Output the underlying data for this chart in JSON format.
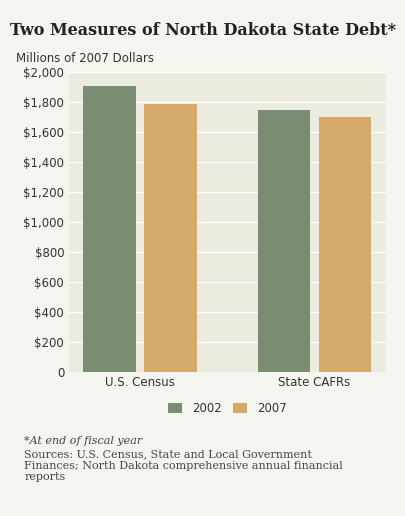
{
  "title": "Two Measures of North Dakota State Debt*",
  "ylabel": "Millions of 2007 Dollars",
  "categories": [
    "U.S. Census",
    "State CAFRs"
  ],
  "series": {
    "2002": [
      1910,
      1750
    ],
    "2007": [
      1790,
      1700
    ]
  },
  "bar_colors": {
    "2002": "#7a8c72",
    "2007": "#d4a96a"
  },
  "ylim": [
    0,
    2000
  ],
  "yticks": [
    0,
    200,
    400,
    600,
    800,
    1000,
    1200,
    1400,
    1600,
    1800,
    2000
  ],
  "legend_labels": [
    "2002",
    "2007"
  ],
  "footnote_line1": "*At end of fiscal year",
  "footnote_line2": "Sources: U.S. Census, State and Local Government\nFinances; North Dakota comprehensive annual financial\nreports",
  "background_color": "#ebebdf",
  "figure_background": "#f5f5f0",
  "title_fontsize": 11.5,
  "label_fontsize": 8.5,
  "tick_fontsize": 8.5,
  "footnote_fontsize": 8
}
